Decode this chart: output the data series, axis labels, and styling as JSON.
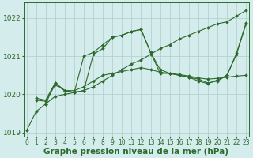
{
  "background_color": "#d4ecec",
  "grid_color": "#b0cccc",
  "line_color": "#2d6a2d",
  "marker_color": "#2d6a2d",
  "xlabel": "Graphe pression niveau de la mer (hPa)",
  "xlabel_fontsize": 7.5,
  "ylabel_fontsize": 6.5,
  "tick_fontsize": 5.5,
  "ylim": [
    1018.9,
    1022.4
  ],
  "xlim": [
    -0.3,
    23.3
  ],
  "yticks": [
    1019,
    1020,
    1021,
    1022
  ],
  "xticks": [
    0,
    1,
    2,
    3,
    4,
    5,
    6,
    7,
    8,
    9,
    10,
    11,
    12,
    13,
    14,
    15,
    16,
    17,
    18,
    19,
    20,
    21,
    22,
    23
  ],
  "series": [
    {
      "x": [
        0,
        1,
        2,
        3,
        4,
        5,
        6,
        7,
        8,
        9,
        10,
        11,
        12,
        13,
        14,
        15,
        16,
        17,
        18,
        19,
        20,
        21,
        22,
        23
      ],
      "y": [
        1019.05,
        1019.55,
        1019.75,
        1019.95,
        1020.0,
        1020.05,
        1020.1,
        1020.2,
        1020.35,
        1020.5,
        1020.65,
        1020.8,
        1020.9,
        1021.05,
        1021.2,
        1021.3,
        1021.45,
        1021.55,
        1021.65,
        1021.75,
        1021.85,
        1021.9,
        1022.05,
        1022.2
      ]
    },
    {
      "x": [
        2,
        3,
        4,
        5,
        6,
        7,
        8,
        9,
        10,
        11,
        12,
        13,
        14,
        15,
        16,
        17,
        18,
        19,
        20,
        21,
        22,
        23
      ],
      "y": [
        1019.75,
        1020.3,
        1020.1,
        1020.05,
        1021.0,
        1021.1,
        1021.3,
        1021.5,
        1021.55,
        1021.65,
        1021.7,
        1021.1,
        1020.55,
        1020.55,
        1020.5,
        1020.45,
        1020.4,
        1020.3,
        1020.35,
        1020.5,
        1021.05,
        1021.85
      ]
    },
    {
      "x": [
        1,
        2,
        3,
        4,
        5,
        6,
        7,
        8,
        9,
        10,
        11,
        12,
        13,
        14,
        15,
        16,
        17,
        18,
        19,
        20,
        21,
        22,
        23
      ],
      "y": [
        1019.9,
        1019.85,
        1020.3,
        1020.1,
        1020.05,
        1020.1,
        1021.05,
        1021.2,
        1021.5,
        1021.55,
        1021.65,
        1021.7,
        1021.1,
        1020.65,
        1020.55,
        1020.5,
        1020.45,
        1020.35,
        1020.28,
        1020.38,
        1020.5,
        1021.08,
        1021.88
      ]
    },
    {
      "x": [
        1,
        2,
        3,
        4,
        5,
        6,
        7,
        8,
        9,
        10,
        11,
        12,
        13,
        14,
        15,
        16,
        17,
        18,
        19,
        20,
        21,
        22,
        23
      ],
      "y": [
        1019.85,
        1019.82,
        1020.25,
        1020.1,
        1020.1,
        1020.2,
        1020.35,
        1020.5,
        1020.55,
        1020.6,
        1020.65,
        1020.7,
        1020.65,
        1020.58,
        1020.55,
        1020.52,
        1020.48,
        1020.43,
        1020.4,
        1020.42,
        1020.45,
        1020.48,
        1020.5
      ]
    }
  ]
}
